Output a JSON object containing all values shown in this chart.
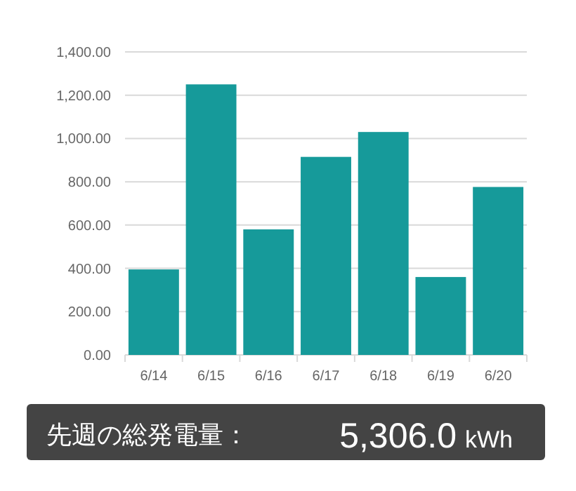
{
  "chart_data": [
    {
      "type": "bar",
      "categories": [
        "6/14",
        "6/15",
        "6/16",
        "6/17",
        "6/18",
        "6/19",
        "6/20"
      ],
      "values": [
        395,
        1250,
        580,
        915,
        1030,
        360,
        776
      ],
      "color": "#169a9a",
      "ylim": [
        0,
        1400
      ],
      "yticks": [
        {
          "value": 0,
          "label": "0.00"
        },
        {
          "value": 200,
          "label": "200.00"
        },
        {
          "value": 400,
          "label": "400.00"
        },
        {
          "value": 600,
          "label": "600.00"
        },
        {
          "value": 800,
          "label": "800.00"
        },
        {
          "value": 1000,
          "label": "1,000.00"
        },
        {
          "value": 1200,
          "label": "1,200.00"
        },
        {
          "value": 1400,
          "label": "1,400.00"
        }
      ],
      "grid": "y"
    },
    {
      "type": "other",
      "annotations": [
        "先週の総発電量：",
        "5,306.0",
        "kWh"
      ]
    }
  ]
}
